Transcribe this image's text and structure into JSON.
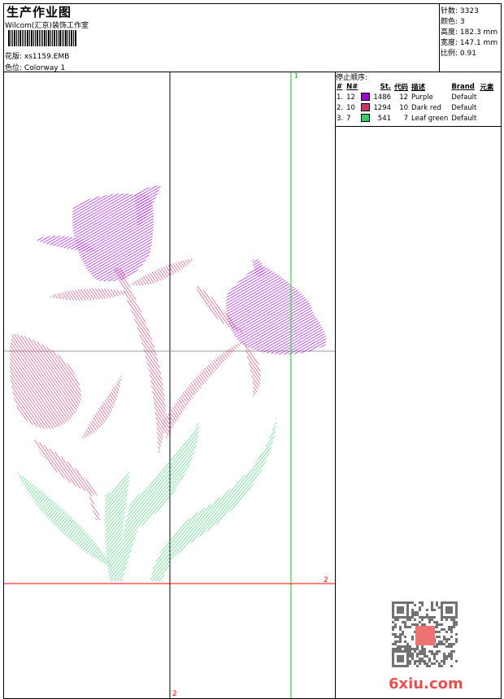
{
  "header": {
    "title": "生产作业图",
    "company": "Wilcom(汇京)装饰工作室",
    "design_label": "花版:",
    "design": "xs1159.EMB",
    "colorway_label": "色位:",
    "colorway": "Colorway 1"
  },
  "stats": [
    {
      "label": "针数:",
      "value": "3323"
    },
    {
      "label": "颜色:",
      "value": "3"
    },
    {
      "label": "高度:",
      "value": "182.3 mm"
    },
    {
      "label": "宽度:",
      "value": "147.1 mm"
    },
    {
      "label": "比例:",
      "value": "0.91"
    }
  ],
  "stop_sequence": {
    "title": "停止顺序:",
    "columns": [
      "#",
      "N#",
      "St.",
      "代码",
      "描述",
      "Brand",
      "元素"
    ],
    "rows": [
      {
        "idx": "1.",
        "n": "12",
        "color": "#9B00D0",
        "st": "1486",
        "code": "12",
        "desc": "Purple",
        "brand": "Default"
      },
      {
        "idx": "2.",
        "n": "10",
        "color": "#CC3366",
        "st": "1294",
        "code": "10",
        "desc": "Dark red",
        "brand": "Default"
      },
      {
        "idx": "3.",
        "n": "7",
        "color": "#33CC66",
        "st": "541",
        "code": "7",
        "desc": "Leaf green",
        "brand": "Default"
      }
    ]
  },
  "guides": {
    "green_label": "1",
    "red_label_h": "2",
    "red_label_v": "2"
  },
  "watermark": {
    "text": "6xiu.com",
    "seal": "以图版"
  }
}
